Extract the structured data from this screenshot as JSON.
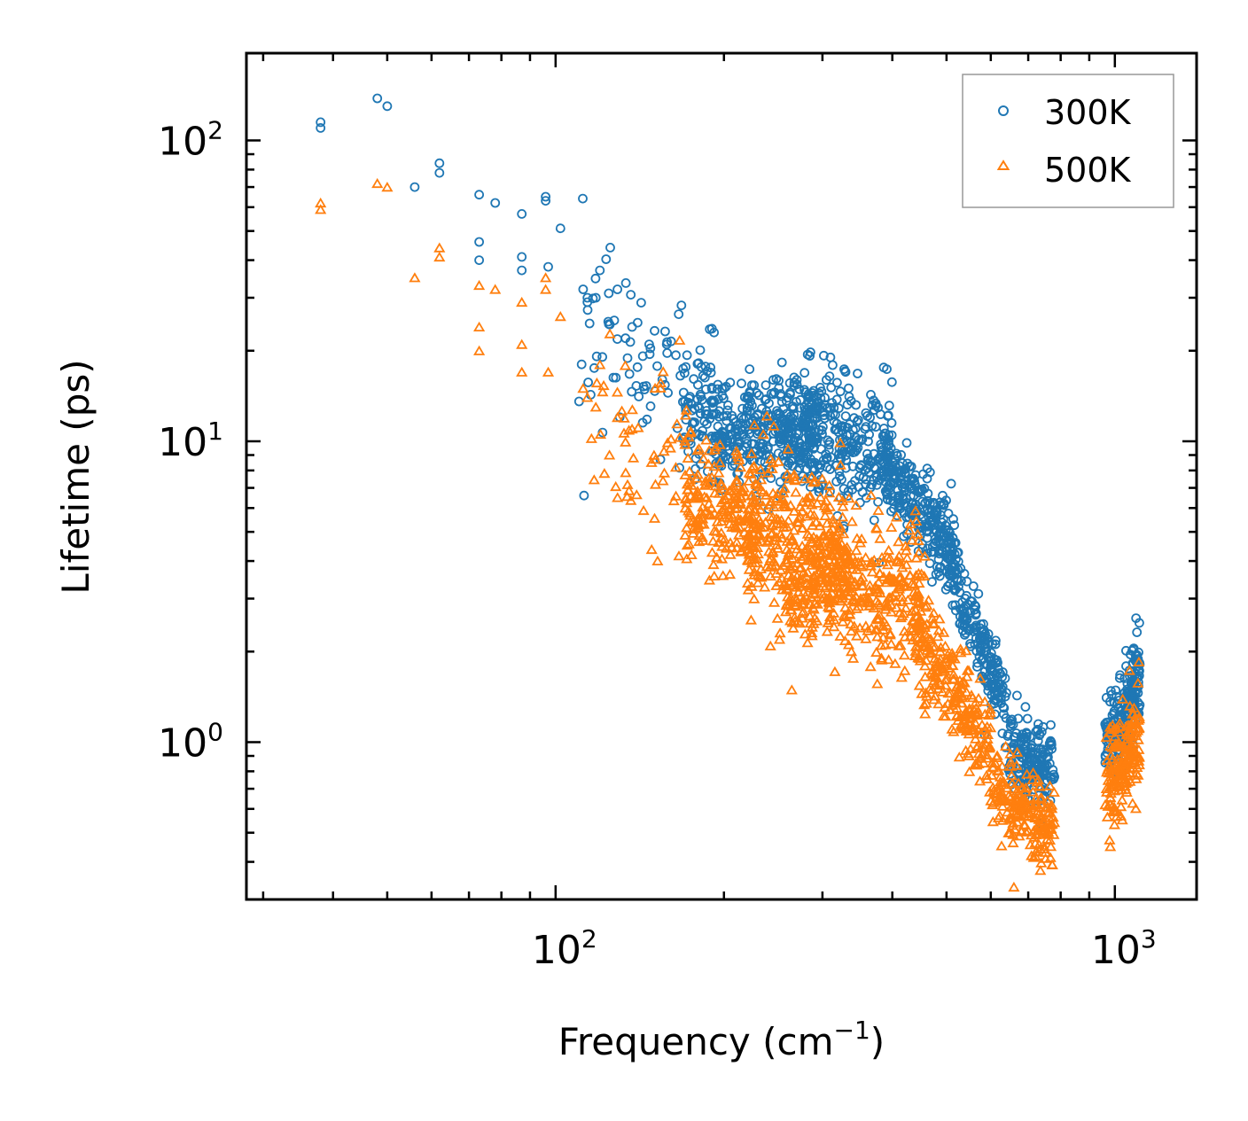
{
  "chart_data": {
    "type": "scatter",
    "xscale": "log",
    "yscale": "log",
    "xlim": [
      28,
      1400
    ],
    "ylim": [
      0.3,
      195
    ],
    "xlabel": "Frequency (cm",
    "xlabel_sup": "−1",
    "xlabel_end": ")",
    "ylabel": "Lifetime (ps)",
    "x_ticks": [
      {
        "value": 100,
        "base": "10",
        "exp": "2"
      },
      {
        "value": 1000,
        "base": "10",
        "exp": "3"
      }
    ],
    "y_ticks": [
      {
        "value": 1,
        "base": "10",
        "exp": "0"
      },
      {
        "value": 10,
        "base": "10",
        "exp": "1"
      },
      {
        "value": 100,
        "base": "10",
        "exp": "2"
      }
    ],
    "legend_position": "top-right",
    "series": [
      {
        "name": "300K",
        "color": "#1f77b4",
        "marker": "circle",
        "anchor_points": [
          [
            38,
            115
          ],
          [
            38,
            110
          ],
          [
            48,
            138
          ],
          [
            50,
            130
          ],
          [
            56,
            70
          ],
          [
            62,
            84
          ],
          [
            62,
            78
          ],
          [
            73,
            66
          ],
          [
            73,
            46
          ],
          [
            73,
            40
          ],
          [
            78,
            62
          ],
          [
            87,
            57
          ],
          [
            87,
            41
          ],
          [
            87,
            37
          ],
          [
            96,
            65
          ],
          [
            96,
            63
          ],
          [
            97,
            38
          ],
          [
            102,
            51
          ],
          [
            112,
            32
          ],
          [
            114,
            30
          ],
          [
            114,
            29
          ],
          [
            118,
            30
          ],
          [
            120,
            37
          ],
          [
            129,
            32
          ],
          [
            137,
            24
          ],
          [
            147,
            21
          ],
          [
            158,
            21
          ],
          [
            192,
            23
          ],
          [
            200,
            15
          ],
          [
            215,
            12
          ],
          [
            245,
            16
          ],
          [
            270,
            16
          ],
          [
            305,
            16
          ],
          [
            310,
            19
          ],
          [
            330,
            17
          ],
          [
            365,
            12
          ],
          [
            415,
            8
          ],
          [
            480,
            5
          ],
          [
            540,
            3
          ],
          [
            610,
            1.6
          ],
          [
            680,
            1.0
          ],
          [
            740,
            0.82
          ],
          [
            770,
            0.75
          ]
        ],
        "clusters": [
          {
            "x": [
              110,
              175
            ],
            "y_center_start": 20,
            "y_center_end": 15,
            "spread": 0.18,
            "count": 70
          },
          {
            "x": [
              170,
              200
            ],
            "y_center_start": 13,
            "y_center_end": 12,
            "spread": 0.12,
            "count": 80
          },
          {
            "x": [
              190,
              300
            ],
            "y_center_start": 10.5,
            "y_center_end": 11,
            "spread": 0.09,
            "count": 320
          },
          {
            "x": [
              250,
              400
            ],
            "y_center_start": 11,
            "y_center_end": 9,
            "spread": 0.11,
            "count": 300
          },
          {
            "x": [
              380,
              520
            ],
            "y_center_start": 8.5,
            "y_center_end": 4.2,
            "spread": 0.07,
            "count": 260
          },
          {
            "x": [
              500,
              640
            ],
            "y_center_start": 4,
            "y_center_end": 1.3,
            "spread": 0.06,
            "count": 200
          },
          {
            "x": [
              640,
              780
            ],
            "y_center_start": 0.95,
            "y_center_end": 0.78,
            "spread": 0.06,
            "count": 180
          },
          {
            "x": [
              960,
              1060
            ],
            "y_center_start": 1.0,
            "y_center_end": 1.25,
            "spread": 0.07,
            "count": 120
          },
          {
            "x": [
              1060,
              1110
            ],
            "y_center_start": 1.5,
            "y_center_end": 1.6,
            "spread": 0.09,
            "count": 90
          }
        ]
      },
      {
        "name": "500K",
        "color": "#ff7f0e",
        "marker": "triangle",
        "anchor_points": [
          [
            38,
            62
          ],
          [
            38,
            59
          ],
          [
            48,
            72
          ],
          [
            50,
            70
          ],
          [
            56,
            35
          ],
          [
            62,
            44
          ],
          [
            62,
            41
          ],
          [
            73,
            33
          ],
          [
            73,
            24
          ],
          [
            73,
            20
          ],
          [
            78,
            32
          ],
          [
            87,
            29
          ],
          [
            87,
            21
          ],
          [
            87,
            17
          ],
          [
            96,
            35
          ],
          [
            96,
            32
          ],
          [
            97,
            17
          ],
          [
            102,
            26
          ],
          [
            112,
            15
          ],
          [
            114,
            14
          ],
          [
            118,
            13
          ],
          [
            120,
            18
          ],
          [
            129,
            12
          ],
          [
            137,
            11
          ],
          [
            150,
            9
          ],
          [
            175,
            4.2
          ],
          [
            200,
            6
          ],
          [
            250,
            5.5
          ],
          [
            265,
            2.5
          ],
          [
            310,
            5
          ],
          [
            350,
            2.4
          ],
          [
            400,
            3.5
          ],
          [
            480,
            1.8
          ],
          [
            560,
            1.1
          ],
          [
            630,
            0.55
          ],
          [
            660,
            0.33
          ],
          [
            720,
            0.56
          ],
          [
            760,
            0.5
          ]
        ],
        "clusters": [
          {
            "x": [
              115,
              175
            ],
            "y_center_start": 11,
            "y_center_end": 7.5,
            "spread": 0.16,
            "count": 60
          },
          {
            "x": [
              170,
              230
            ],
            "y_center_start": 6.5,
            "y_center_end": 5.5,
            "spread": 0.11,
            "count": 200
          },
          {
            "x": [
              220,
              300
            ],
            "y_center_start": 5.2,
            "y_center_end": 4.8,
            "spread": 0.13,
            "count": 220
          },
          {
            "x": [
              255,
              330
            ],
            "y_center_start": 3.0,
            "y_center_end": 3.8,
            "spread": 0.09,
            "count": 160
          },
          {
            "x": [
              300,
              450
            ],
            "y_center_start": 4.0,
            "y_center_end": 2.7,
            "spread": 0.12,
            "count": 320
          },
          {
            "x": [
              440,
              600
            ],
            "y_center_start": 2.4,
            "y_center_end": 0.95,
            "spread": 0.08,
            "count": 240
          },
          {
            "x": [
              600,
              780
            ],
            "y_center_start": 0.7,
            "y_center_end": 0.52,
            "spread": 0.07,
            "count": 200
          },
          {
            "x": [
              960,
              1110
            ],
            "y_center_start": 0.7,
            "y_center_end": 1.05,
            "spread": 0.09,
            "count": 190
          }
        ]
      }
    ]
  }
}
